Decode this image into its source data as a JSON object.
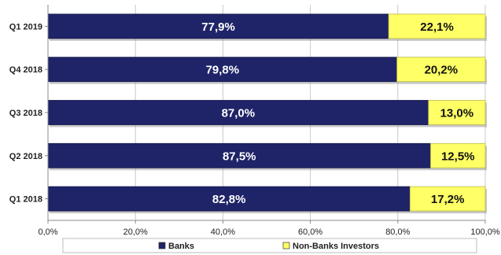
{
  "chart_data": {
    "type": "bar",
    "orientation": "horizontal",
    "stacked": true,
    "categories": [
      "Q1 2019",
      "Q4 2018",
      "Q3 2018",
      "Q2 2018",
      "Q1 2018"
    ],
    "series": [
      {
        "name": "Banks",
        "color": "#1f2468",
        "values": [
          77.9,
          79.8,
          87.0,
          87.5,
          82.8
        ],
        "labels": [
          "77,9%",
          "79,8%",
          "87,0%",
          "87,5%",
          "82,8%"
        ]
      },
      {
        "name": "Non-Banks Investors",
        "color": "#ffff66",
        "values": [
          22.1,
          20.2,
          13.0,
          12.5,
          17.2
        ],
        "labels": [
          "22,1%",
          "20,2%",
          "13,0%",
          "12,5%",
          "17,2%"
        ]
      }
    ],
    "xlim": [
      0,
      100
    ],
    "xticks": [
      "0,0%",
      "20,0%",
      "40,0%",
      "60,0%",
      "80,0%",
      "100,0%"
    ],
    "grid": true,
    "legend_position": "bottom"
  }
}
